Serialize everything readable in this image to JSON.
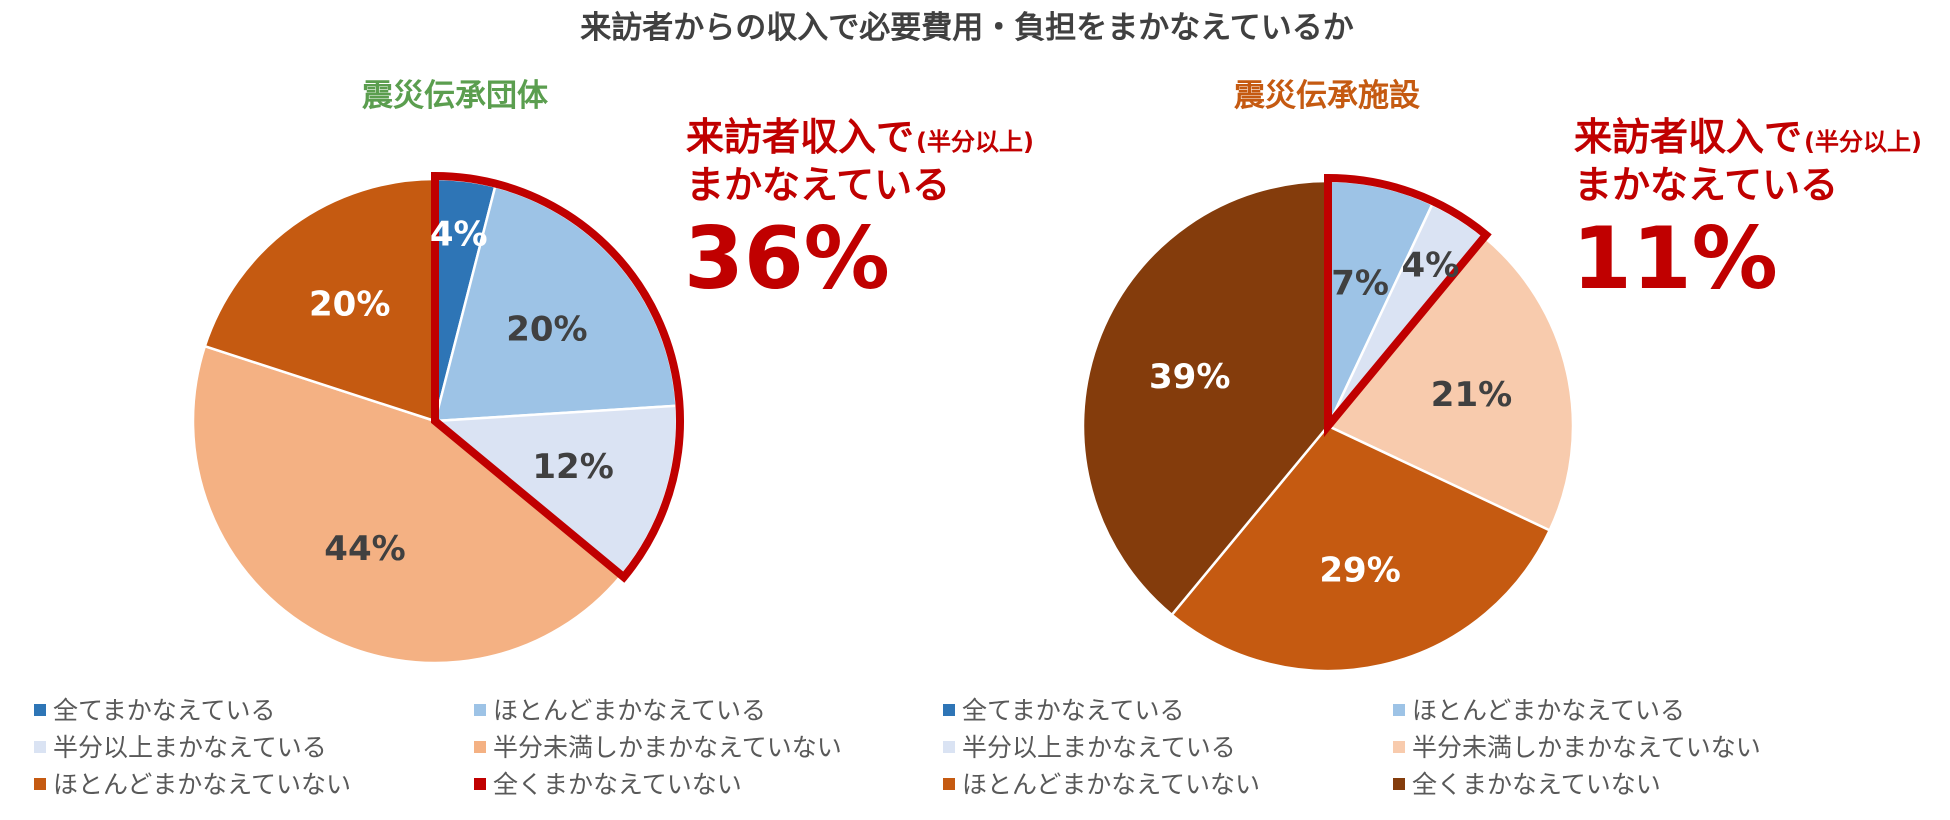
{
  "page_title": "来訪者からの収入で必要費用・負担をまかなえているか",
  "chart_data": [
    {
      "type": "pie",
      "title": "震災伝承団体",
      "title_color": "#5b9e4f",
      "categories": [
        "全てまかなえている",
        "ほとんどまかなえている",
        "半分以上まかなえている",
        "半分未満しかまかなえていない",
        "ほとんどまかなえていない",
        "全くまかなえていない"
      ],
      "values": [
        4,
        20,
        12,
        44,
        20,
        0
      ],
      "value_labels": [
        "4%",
        "20%",
        "12%",
        "44%",
        "20%",
        ""
      ],
      "colors": [
        "#2e75b6",
        "#9dc3e6",
        "#dae3f3",
        "#f4b183",
        "#c55a11",
        "#c00000"
      ],
      "label_colors": [
        "#ffffff",
        "#404040",
        "#404040",
        "#404040",
        "#ffffff",
        "#404040"
      ],
      "highlight_count": 3,
      "callout": {
        "line1": "来訪者収入で",
        "line1_small": "(半分以上)",
        "line2": "まかなえている",
        "value": "36%"
      }
    },
    {
      "type": "pie",
      "title": "震災伝承施設",
      "title_color": "#c55a11",
      "categories": [
        "全てまかなえている",
        "ほとんどまかなえている",
        "半分以上まかなえている",
        "半分未満しかまかなえていない",
        "ほとんどまかなえていない",
        "全くまかなえていない"
      ],
      "values": [
        0,
        7,
        4,
        21,
        29,
        39
      ],
      "value_labels": [
        "",
        "7%",
        "4%",
        "21%",
        "29%",
        "39%"
      ],
      "colors": [
        "#2e75b6",
        "#9dc3e6",
        "#dae3f3",
        "#f8cbad",
        "#c55a11",
        "#843c0c"
      ],
      "label_colors": [
        "#404040",
        "#404040",
        "#404040",
        "#404040",
        "#ffffff",
        "#ffffff"
      ],
      "highlight_count": 3,
      "callout": {
        "line1": "来訪者収入で",
        "line1_small": "(半分以上)",
        "line2": "まかなえている",
        "value": "11%"
      }
    }
  ]
}
